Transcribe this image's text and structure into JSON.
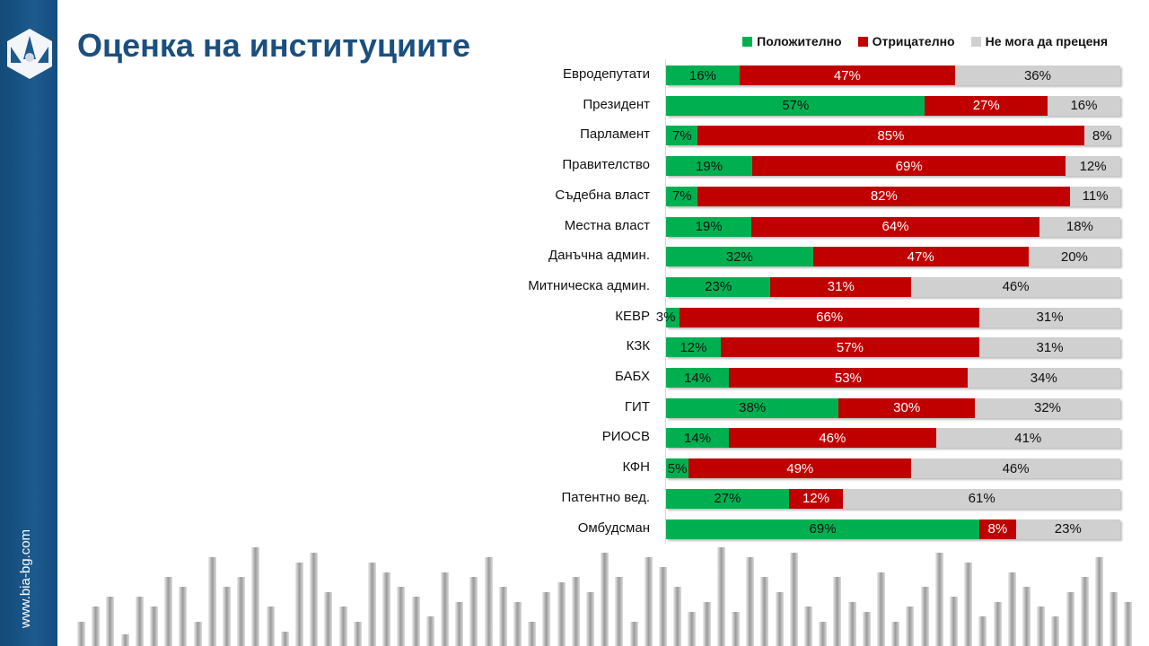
{
  "sidebar": {
    "website": "www.bia-bg.com"
  },
  "colors": {
    "positive": "#00b050",
    "negative": "#c00000",
    "unknown": "#d0d0d0",
    "title": "#1b4f7f"
  },
  "chart_data": {
    "type": "bar",
    "orientation": "horizontal-stacked-100",
    "title": "Оценка на институциите",
    "legend": [
      "Положително",
      "Отрицателно",
      "Не мога да преценя"
    ],
    "legend_position": "top-right",
    "categories": [
      "Евродепутати",
      "Президент",
      "Парламент",
      "Правителство",
      "Съдебна власт",
      "Местна власт",
      "Данъчна админ.",
      "Митническа админ.",
      "КЕВР",
      "КЗК",
      "БАБХ",
      "ГИТ",
      "РИОСВ",
      "КФН",
      "Патентно вед.",
      "Омбудсман"
    ],
    "series": [
      {
        "name": "Положително",
        "values": [
          16,
          57,
          7,
          19,
          7,
          19,
          32,
          23,
          3,
          12,
          14,
          38,
          14,
          5,
          27,
          69
        ]
      },
      {
        "name": "Отрицателно",
        "values": [
          47,
          27,
          85,
          69,
          82,
          64,
          47,
          31,
          66,
          57,
          53,
          30,
          46,
          49,
          12,
          8
        ]
      },
      {
        "name": "Не мога да преценя",
        "values": [
          36,
          16,
          8,
          12,
          11,
          18,
          20,
          46,
          31,
          31,
          34,
          32,
          41,
          46,
          61,
          23
        ]
      }
    ],
    "unit": "%"
  }
}
